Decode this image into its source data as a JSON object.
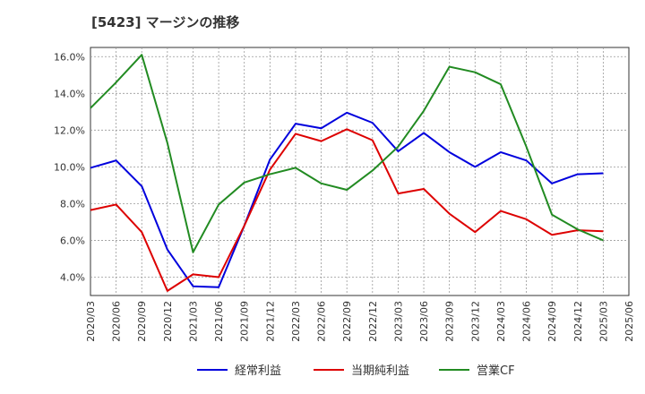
{
  "chart_data": {
    "type": "line",
    "title": "[5423]  マージンの推移",
    "xlabel": "",
    "ylabel": "",
    "x": [
      "2020/03",
      "2020/06",
      "2020/09",
      "2020/12",
      "2021/03",
      "2021/06",
      "2021/09",
      "2021/12",
      "2022/03",
      "2022/06",
      "2022/09",
      "2022/12",
      "2023/03",
      "2023/06",
      "2023/09",
      "2023/12",
      "2024/03",
      "2024/06",
      "2024/09",
      "2024/12",
      "2025/03",
      "2025/06"
    ],
    "y_ticks": [
      "4.0%",
      "6.0%",
      "8.0%",
      "10.0%",
      "12.0%",
      "14.0%",
      "16.0%"
    ],
    "ylim": [
      3.0,
      16.5
    ],
    "grid": true,
    "legend_position": "bottom",
    "series": [
      {
        "name": "経常利益",
        "color": "#0000dd",
        "values": [
          9.95,
          10.35,
          8.95,
          5.5,
          3.5,
          3.45,
          6.8,
          10.4,
          12.35,
          12.1,
          12.95,
          12.4,
          10.85,
          11.85,
          10.8,
          10.0,
          10.8,
          10.35,
          9.1,
          9.6,
          9.65,
          null
        ]
      },
      {
        "name": "当期純利益",
        "color": "#dd0000",
        "values": [
          7.65,
          7.95,
          6.45,
          3.25,
          4.15,
          4.0,
          6.8,
          9.85,
          11.8,
          11.4,
          12.05,
          11.45,
          8.55,
          8.8,
          7.45,
          6.45,
          7.6,
          7.15,
          6.3,
          6.55,
          6.5,
          null
        ]
      },
      {
        "name": "営業CF",
        "color": "#228b22",
        "values": [
          13.2,
          14.6,
          16.1,
          11.3,
          5.35,
          7.95,
          9.15,
          9.6,
          9.95,
          9.1,
          8.75,
          9.8,
          11.1,
          13.05,
          15.45,
          15.15,
          14.5,
          11.1,
          7.4,
          6.6,
          6.0,
          null
        ]
      }
    ]
  }
}
